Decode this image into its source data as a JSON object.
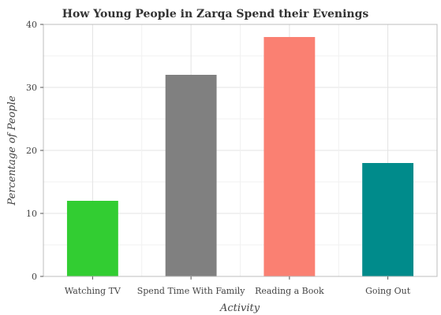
{
  "chart_data": {
    "type": "bar",
    "title": "How Young People in Zarqa Spend their Evenings",
    "xlabel": "Activity",
    "ylabel": "Percentage of People",
    "categories": [
      "Watching TV",
      "Spend Time With Family",
      "Reading a Book",
      "Going Out"
    ],
    "values": [
      12,
      32,
      38,
      18
    ],
    "colors": [
      "#32cd32",
      "#808080",
      "#fa8072",
      "#008b8b"
    ],
    "ylim": [
      0,
      40
    ],
    "yticks": [
      0,
      10,
      20,
      30,
      40
    ],
    "grid": true,
    "legend": "none"
  }
}
